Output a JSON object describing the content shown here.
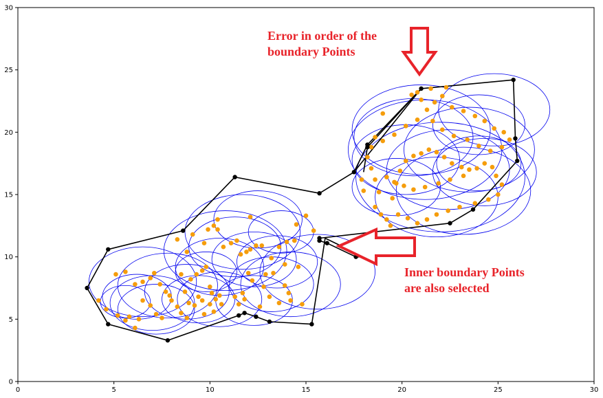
{
  "chart_data": {
    "type": "scatter",
    "xlim": [
      0,
      30
    ],
    "ylim": [
      0,
      30
    ],
    "grid": false,
    "x_ticks": [
      0,
      5,
      10,
      15,
      20,
      25,
      30
    ],
    "y_ticks": [
      0,
      5,
      10,
      15,
      20,
      25,
      30
    ],
    "x_tick_labels": [
      "0",
      "5",
      "10",
      "15",
      "20",
      "25",
      "30"
    ],
    "y_tick_labels": [
      "0",
      "5",
      "10",
      "15",
      "20",
      "25",
      "30"
    ],
    "colors": {
      "circles": "#0000ee",
      "points": "#f59d0c",
      "boundary": "#000000",
      "annotation": "#e8232a"
    },
    "annotations": [
      {
        "line1": "Error in order of the",
        "line2": "boundary Points",
        "arrow": "down"
      },
      {
        "line1": "Inner boundary Points",
        "line2": "are also selected",
        "arrow": "left"
      }
    ],
    "boundary_path": [
      [
        7.8,
        3.3
      ],
      [
        4.7,
        4.6
      ],
      [
        3.6,
        7.5
      ],
      [
        4.7,
        10.6
      ],
      [
        8.6,
        12.1
      ],
      [
        11.3,
        16.4
      ],
      [
        15.7,
        15.1
      ],
      [
        17.5,
        16.8
      ],
      [
        21.0,
        23.5
      ],
      [
        25.8,
        24.2
      ],
      [
        25.9,
        19.5
      ],
      [
        26.0,
        17.7
      ],
      [
        23.7,
        13.8
      ],
      [
        22.5,
        12.7
      ],
      [
        15.7,
        11.5
      ],
      [
        15.7,
        11.3
      ],
      [
        16.1,
        11.1
      ],
      [
        17.6,
        10.0
      ],
      [
        18.0,
        10.0
      ],
      [
        16.0,
        11.5
      ],
      [
        15.3,
        4.6
      ],
      [
        13.1,
        4.8
      ],
      [
        12.4,
        5.2
      ],
      [
        11.8,
        5.5
      ],
      [
        11.5,
        5.3
      ],
      [
        7.8,
        3.3
      ]
    ],
    "inner_path": [
      [
        18.0,
        16.8
      ],
      [
        18.2,
        18.8
      ],
      [
        21.0,
        23.5
      ],
      [
        18.2,
        19.0
      ],
      [
        17.5,
        16.8
      ]
    ],
    "circles": [
      [
        7.0,
        6.3,
        2.2
      ],
      [
        6.2,
        6.8,
        1.8
      ],
      [
        5.6,
        6.4,
        1.3
      ],
      [
        7.8,
        7.7,
        2.6
      ],
      [
        8.8,
        7.2,
        2.2
      ],
      [
        6.5,
        8.0,
        2.8
      ],
      [
        9.4,
        6.6,
        1.9
      ],
      [
        7.2,
        5.8,
        2.0
      ],
      [
        10.5,
        9.2,
        2.3
      ],
      [
        11.3,
        10.8,
        2.4
      ],
      [
        11.7,
        12.0,
        3.0
      ],
      [
        12.5,
        13.0,
        2.3
      ],
      [
        10.8,
        10.5,
        3.2
      ],
      [
        12.3,
        9.8,
        2.2
      ],
      [
        13.5,
        9.6,
        2.1
      ],
      [
        13.2,
        7.8,
        2.2
      ],
      [
        12.3,
        6.5,
        2.0
      ],
      [
        10.5,
        6.6,
        2.2
      ],
      [
        14.2,
        7.8,
        2.6
      ],
      [
        9.8,
        8.8,
        1.6
      ],
      [
        13.7,
        12.0,
        1.7
      ],
      [
        15.6,
        8.8,
        3.0
      ],
      [
        21.0,
        20.2,
        3.6
      ],
      [
        21.2,
        18.6,
        4.0
      ],
      [
        22.0,
        16.4,
        4.4
      ],
      [
        23.2,
        15.3,
        3.5
      ],
      [
        20.2,
        17.8,
        2.8
      ],
      [
        22.4,
        17.0,
        3.2
      ],
      [
        24.8,
        21.8,
        2.9
      ],
      [
        24.0,
        20.6,
        2.4
      ],
      [
        21.8,
        14.8,
        3.2
      ],
      [
        19.7,
        15.6,
        2.3
      ],
      [
        24.0,
        17.5,
        2.2
      ],
      [
        24.3,
        16.8,
        2.7
      ],
      [
        20.6,
        19.6,
        3.1
      ],
      [
        23.5,
        18.6,
        3.4
      ]
    ],
    "orange_points": [
      [
        4.2,
        6.5
      ],
      [
        4.6,
        5.8
      ],
      [
        5.2,
        5.3
      ],
      [
        5.6,
        4.9
      ],
      [
        5.8,
        5.2
      ],
      [
        6.1,
        4.3
      ],
      [
        6.3,
        5.0
      ],
      [
        5.1,
        8.6
      ],
      [
        5.6,
        8.8
      ],
      [
        6.1,
        7.8
      ],
      [
        6.5,
        8.0
      ],
      [
        6.9,
        8.3
      ],
      [
        7.1,
        8.7
      ],
      [
        7.4,
        7.8
      ],
      [
        7.7,
        7.2
      ],
      [
        7.9,
        6.9
      ],
      [
        6.5,
        6.5
      ],
      [
        6.9,
        6.1
      ],
      [
        7.2,
        5.4
      ],
      [
        7.5,
        5.1
      ],
      [
        8.0,
        6.5
      ],
      [
        8.3,
        6.0
      ],
      [
        8.5,
        5.5
      ],
      [
        8.8,
        5.1
      ],
      [
        8.9,
        6.3
      ],
      [
        9.2,
        6.1
      ],
      [
        9.4,
        6.8
      ],
      [
        9.6,
        6.5
      ],
      [
        8.5,
        8.6
      ],
      [
        8.7,
        7.2
      ],
      [
        9.0,
        8.2
      ],
      [
        9.3,
        8.6
      ],
      [
        9.6,
        8.9
      ],
      [
        9.8,
        9.2
      ],
      [
        10.0,
        7.6
      ],
      [
        10.1,
        7.1
      ],
      [
        10.3,
        6.6
      ],
      [
        10.5,
        6.9
      ],
      [
        10.6,
        6.2
      ],
      [
        10.0,
        6.2
      ],
      [
        9.7,
        5.4
      ],
      [
        10.2,
        5.6
      ],
      [
        9.1,
        11.8
      ],
      [
        9.7,
        11.1
      ],
      [
        9.9,
        12.2
      ],
      [
        10.2,
        12.5
      ],
      [
        10.4,
        12.2
      ],
      [
        10.7,
        10.8
      ],
      [
        11.1,
        11.1
      ],
      [
        11.4,
        11.3
      ],
      [
        11.6,
        10.2
      ],
      [
        11.9,
        10.4
      ],
      [
        12.1,
        10.6
      ],
      [
        12.4,
        10.9
      ],
      [
        12.7,
        10.9
      ],
      [
        13.2,
        9.9
      ],
      [
        13.6,
        10.8
      ],
      [
        14.0,
        11.2
      ],
      [
        14.4,
        11.3
      ],
      [
        14.6,
        9.2
      ],
      [
        13.9,
        9.4
      ],
      [
        13.3,
        8.7
      ],
      [
        12.9,
        8.6
      ],
      [
        12.8,
        7.6
      ],
      [
        12.2,
        8.1
      ],
      [
        12.0,
        8.7
      ],
      [
        11.7,
        7.1
      ],
      [
        11.8,
        6.6
      ],
      [
        11.5,
        6.2
      ],
      [
        11.3,
        6.8
      ],
      [
        12.6,
        6.0
      ],
      [
        13.1,
        6.8
      ],
      [
        13.6,
        6.3
      ],
      [
        13.9,
        7.7
      ],
      [
        14.1,
        7.1
      ],
      [
        14.2,
        6.5
      ],
      [
        14.8,
        6.2
      ],
      [
        14.5,
        12.6
      ],
      [
        15.0,
        13.3
      ],
      [
        15.4,
        12.1
      ],
      [
        12.1,
        13.2
      ],
      [
        10.4,
        13.0
      ],
      [
        8.3,
        11.4
      ],
      [
        8.8,
        10.4
      ],
      [
        18.2,
        18.0
      ],
      [
        18.4,
        17.1
      ],
      [
        18.6,
        16.2
      ],
      [
        18.8,
        15.2
      ],
      [
        18.6,
        14.0
      ],
      [
        18.9,
        13.4
      ],
      [
        19.2,
        13.0
      ],
      [
        19.5,
        14.7
      ],
      [
        19.7,
        15.9
      ],
      [
        19.9,
        16.9
      ],
      [
        20.2,
        17.7
      ],
      [
        20.6,
        18.1
      ],
      [
        21.0,
        18.3
      ],
      [
        21.4,
        18.6
      ],
      [
        21.8,
        18.4
      ],
      [
        22.2,
        18.0
      ],
      [
        22.6,
        17.5
      ],
      [
        23.1,
        17.2
      ],
      [
        23.5,
        17.0
      ],
      [
        23.9,
        17.1
      ],
      [
        24.3,
        17.5
      ],
      [
        24.7,
        17.2
      ],
      [
        24.9,
        16.5
      ],
      [
        25.2,
        15.8
      ],
      [
        25.0,
        15.0
      ],
      [
        24.5,
        14.6
      ],
      [
        23.8,
        14.3
      ],
      [
        23.0,
        14.0
      ],
      [
        22.4,
        13.7
      ],
      [
        21.8,
        13.4
      ],
      [
        21.3,
        13.0
      ],
      [
        20.8,
        12.7
      ],
      [
        20.3,
        13.1
      ],
      [
        19.8,
        13.4
      ],
      [
        18.4,
        18.8
      ],
      [
        19.0,
        19.3
      ],
      [
        19.6,
        19.8
      ],
      [
        20.2,
        20.5
      ],
      [
        20.8,
        21.0
      ],
      [
        21.3,
        21.8
      ],
      [
        21.7,
        22.4
      ],
      [
        22.1,
        22.9
      ],
      [
        22.6,
        22.0
      ],
      [
        23.2,
        21.7
      ],
      [
        23.8,
        21.3
      ],
      [
        24.3,
        20.9
      ],
      [
        24.8,
        20.3
      ],
      [
        25.3,
        20.0
      ],
      [
        25.6,
        19.4
      ],
      [
        25.2,
        18.8
      ],
      [
        24.6,
        18.5
      ],
      [
        24.0,
        18.9
      ],
      [
        23.4,
        19.4
      ],
      [
        22.7,
        19.7
      ],
      [
        22.1,
        20.2
      ],
      [
        21.6,
        20.9
      ],
      [
        21.0,
        22.6
      ],
      [
        20.8,
        23.2
      ],
      [
        21.5,
        23.5
      ],
      [
        22.3,
        23.6
      ],
      [
        19.2,
        16.4
      ],
      [
        19.6,
        16.0
      ],
      [
        20.1,
        15.7
      ],
      [
        20.6,
        15.4
      ],
      [
        21.2,
        15.6
      ],
      [
        21.9,
        15.9
      ],
      [
        22.5,
        16.2
      ],
      [
        23.2,
        16.5
      ],
      [
        19.0,
        21.5
      ],
      [
        20.5,
        23.0
      ],
      [
        19.4,
        12.5
      ],
      [
        20.6,
        11.4
      ],
      [
        18.0,
        15.3
      ],
      [
        17.9,
        16.2
      ],
      [
        18.6,
        19.6
      ]
    ],
    "boundary_points": [
      [
        7.8,
        3.3
      ],
      [
        4.7,
        4.6
      ],
      [
        3.6,
        7.5
      ],
      [
        4.7,
        10.6
      ],
      [
        8.6,
        12.1
      ],
      [
        11.3,
        16.4
      ],
      [
        15.7,
        15.1
      ],
      [
        17.5,
        16.8
      ],
      [
        18.2,
        18.8
      ],
      [
        18.2,
        19.0
      ],
      [
        21.0,
        23.5
      ],
      [
        25.8,
        24.2
      ],
      [
        25.9,
        19.5
      ],
      [
        26.0,
        17.7
      ],
      [
        23.7,
        13.8
      ],
      [
        22.5,
        12.7
      ],
      [
        15.7,
        11.5
      ],
      [
        15.7,
        11.3
      ],
      [
        16.1,
        11.1
      ],
      [
        17.6,
        10.0
      ],
      [
        15.3,
        4.6
      ],
      [
        13.1,
        4.8
      ],
      [
        12.4,
        5.2
      ],
      [
        11.8,
        5.5
      ],
      [
        11.5,
        5.3
      ]
    ]
  }
}
